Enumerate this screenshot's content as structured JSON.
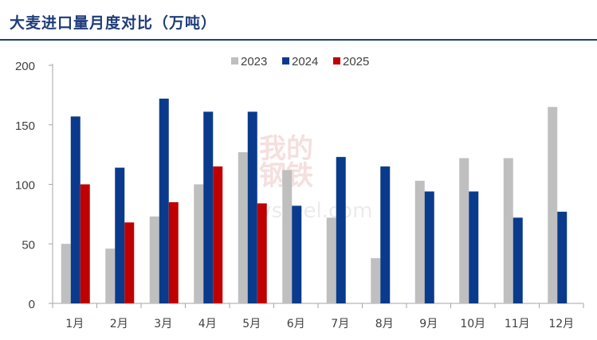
{
  "title": "大麦进口量月度对比（万吨）",
  "watermark": {
    "line1": "我的",
    "line2": "钢铁",
    "url": "mysteel.com"
  },
  "colors": {
    "2023": "#bfbfbf",
    "2024": "#0a3a8c",
    "2025": "#c00000",
    "title": "#1f3d7a"
  },
  "chart_data": {
    "type": "bar",
    "title": "大麦进口量月度对比（万吨）",
    "categories": [
      "1月",
      "2月",
      "3月",
      "4月",
      "5月",
      "6月",
      "7月",
      "8月",
      "9月",
      "10月",
      "11月",
      "12月"
    ],
    "series": [
      {
        "name": "2023",
        "values": [
          50,
          46,
          73,
          100,
          127,
          112,
          72,
          38,
          103,
          122,
          122,
          165
        ]
      },
      {
        "name": "2024",
        "values": [
          157,
          114,
          172,
          161,
          161,
          82,
          123,
          115,
          94,
          94,
          72,
          77
        ]
      },
      {
        "name": "2025",
        "values": [
          100,
          68,
          85,
          115,
          84,
          null,
          null,
          null,
          null,
          null,
          null,
          null
        ]
      }
    ],
    "ylim": [
      0,
      200
    ],
    "yticks": [
      0,
      50,
      100,
      150,
      200
    ],
    "legend": "top-center",
    "grid": false
  }
}
